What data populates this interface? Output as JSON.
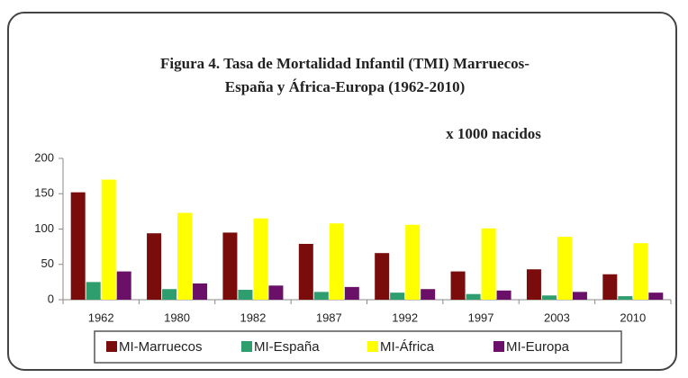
{
  "chart_data": {
    "type": "bar",
    "title": [
      "Figura 4. Tasa de Mortalidad Infantil (TMI) Marruecos-",
      "España y África-Europa (1962-2010)"
    ],
    "annotation": "x 1000 nacidos",
    "categories": [
      "1962",
      "1980",
      "1982",
      "1987",
      "1992",
      "1997",
      "2003",
      "2010"
    ],
    "series": [
      {
        "name": "MI-Marruecos",
        "color": "#7b0c0c",
        "values": [
          152,
          94,
          95,
          79,
          66,
          40,
          43,
          36
        ]
      },
      {
        "name": "MI-España",
        "color": "#2e9e6e",
        "values": [
          25,
          15,
          14,
          11,
          10,
          8,
          6,
          5
        ]
      },
      {
        "name": "MI-África",
        "color": "#ffff00",
        "values": [
          170,
          123,
          115,
          108,
          106,
          101,
          89,
          80
        ]
      },
      {
        "name": "MI-Europa",
        "color": "#6a1068",
        "values": [
          40,
          23,
          20,
          18,
          15,
          13,
          11,
          10
        ]
      }
    ],
    "ylim": [
      0,
      200
    ],
    "yticks": [
      0,
      50,
      100,
      150,
      200
    ],
    "legend": "bottom"
  }
}
